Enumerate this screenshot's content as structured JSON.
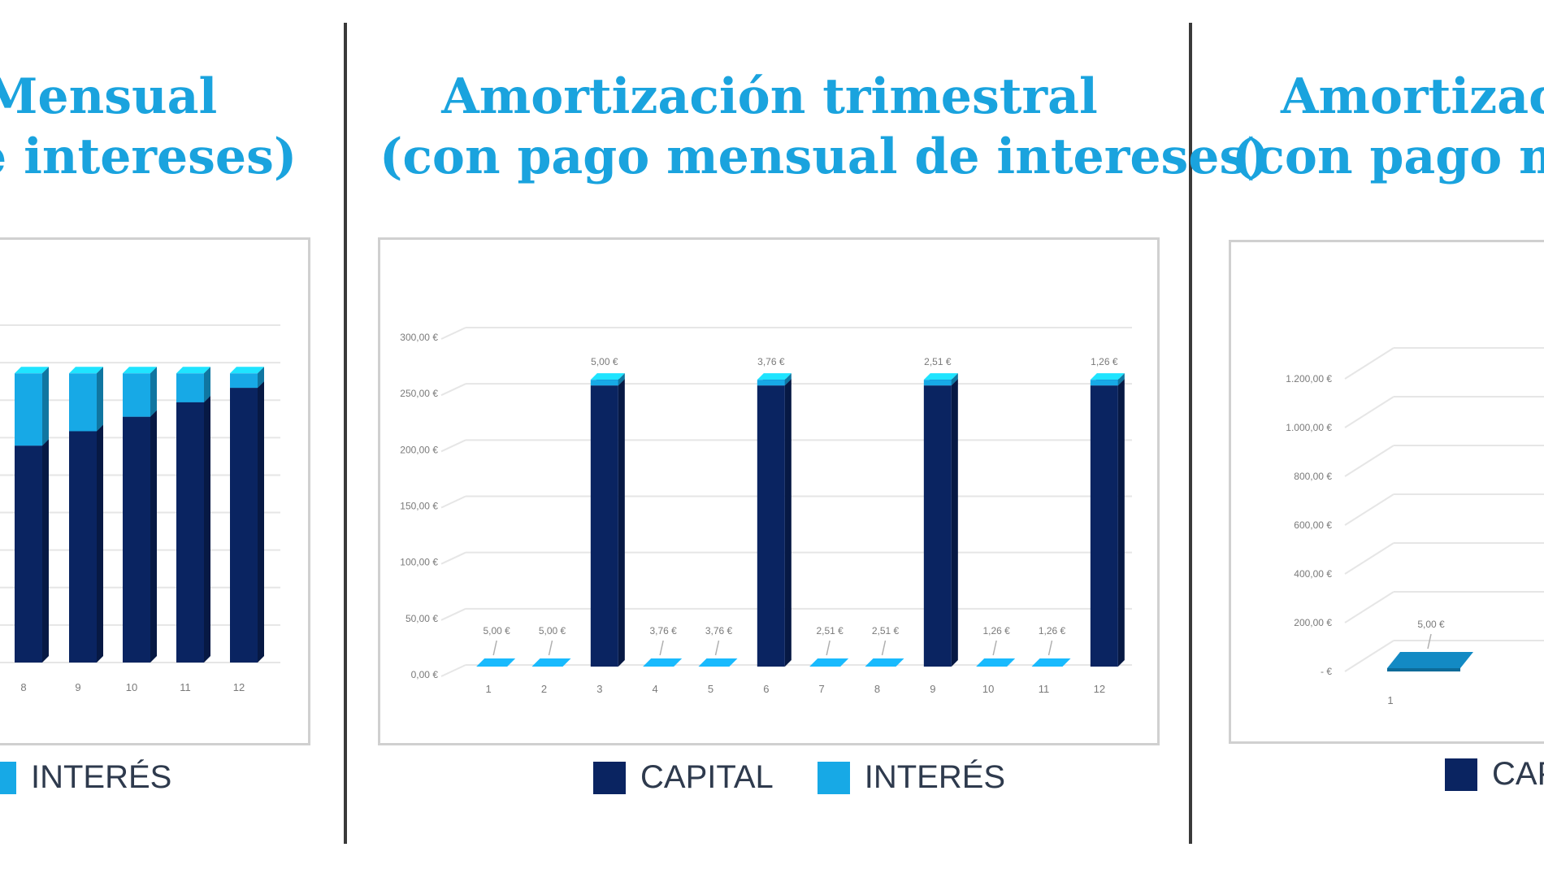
{
  "colors": {
    "title": "#1aa3de",
    "capital": "#0a2461",
    "interes": "#17a9e6",
    "grid": "#e6e6e6",
    "axis_text": "#7a7a7a"
  },
  "panels": {
    "left": {
      "title_line1": "Mensual",
      "title_line2": "e intereses)",
      "legend": {
        "interes": "INTERÉS"
      }
    },
    "center": {
      "title_line1": "Amortización trimestral",
      "title_line2": "(con pago mensual de intereses)",
      "legend": {
        "capital": "CAPITAL",
        "interes": "INTERÉS"
      }
    },
    "right": {
      "title_line1": "Amortizaci",
      "title_line2": "(con pago me",
      "legend": {
        "capital": "CAP"
      }
    }
  },
  "chart_data": [
    {
      "type": "bar",
      "stacked": true,
      "categories": [
        "8",
        "9",
        "10",
        "11",
        "12"
      ],
      "series": [
        {
          "name": "CAPITAL",
          "values": [
            225,
            240,
            255,
            270,
            285
          ]
        },
        {
          "name": "INTERÉS",
          "values": [
            75,
            60,
            45,
            30,
            15
          ]
        }
      ],
      "ylim": [
        0,
        350
      ],
      "grid": true
    },
    {
      "type": "bar",
      "stacked": true,
      "categories": [
        "1",
        "2",
        "3",
        "4",
        "5",
        "6",
        "7",
        "8",
        "9",
        "10",
        "11",
        "12"
      ],
      "y_ticks": [
        "0,00 €",
        "50,00 €",
        "100,00 €",
        "150,00 €",
        "200,00 €",
        "250,00 €",
        "300,00 €"
      ],
      "series": [
        {
          "name": "CAPITAL",
          "values": [
            0,
            0,
            250,
            0,
            0,
            250,
            0,
            0,
            250,
            0,
            0,
            250
          ]
        },
        {
          "name": "INTERÉS",
          "values": [
            5,
            5,
            5,
            3.76,
            3.76,
            3.76,
            2.51,
            2.51,
            2.51,
            1.26,
            1.26,
            1.26
          ]
        }
      ],
      "data_labels": [
        "5,00 €",
        "5,00 €",
        "5,00 €",
        "3,76 €",
        "3,76 €",
        "3,76 €",
        "2,51 €",
        "2,51 €",
        "2,51 €",
        "1,26 €",
        "1,26 €",
        "1,26 €"
      ],
      "ylim": [
        0,
        300
      ],
      "grid": true,
      "legend_position": "bottom"
    },
    {
      "type": "bar",
      "stacked": true,
      "categories": [
        "1"
      ],
      "y_ticks": [
        "- €",
        "200,00 €",
        "400,00 €",
        "600,00 €",
        "800,00 €",
        "1.000,00 €",
        "1.200,00 €"
      ],
      "series": [
        {
          "name": "INTERÉS",
          "values": [
            5
          ]
        }
      ],
      "data_labels": [
        "5,00 €"
      ],
      "ylim": [
        0,
        1200
      ],
      "grid": true,
      "legend_position": "bottom"
    }
  ]
}
